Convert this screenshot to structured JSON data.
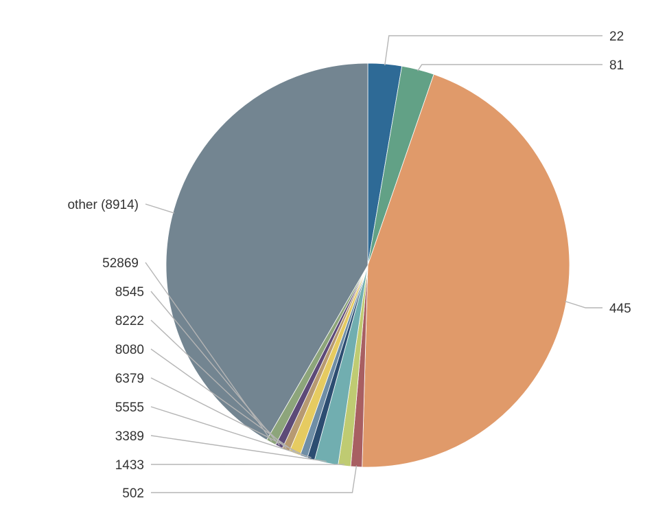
{
  "chart_data": {
    "type": "pie",
    "title": "",
    "start_angle_deg": 0,
    "direction": "clockwise",
    "slices": [
      {
        "label": "22",
        "value": 2.7,
        "color": "#2e6a96"
      },
      {
        "label": "81",
        "value": 2.6,
        "color": "#62a186"
      },
      {
        "label": "445",
        "value": 45.1,
        "color": "#e09a6a"
      },
      {
        "label": "502",
        "value": 0.9,
        "color": "#a85f62"
      },
      {
        "label": "1433",
        "value": 1.0,
        "color": "#bfcb72"
      },
      {
        "label": "3389",
        "value": 1.9,
        "color": "#71aeb0"
      },
      {
        "label": "5555",
        "value": 0.6,
        "color": "#2c4d71"
      },
      {
        "label": "6379",
        "value": 0.6,
        "color": "#6f8ea6"
      },
      {
        "label": "8080",
        "value": 0.9,
        "color": "#e6cb61"
      },
      {
        "label": "8222",
        "value": 0.6,
        "color": "#b79a72"
      },
      {
        "label": "8545",
        "value": 0.6,
        "color": "#5d4a78"
      },
      {
        "label": "52869",
        "value": 0.8,
        "color": "#8da57b"
      },
      {
        "label": "other (8914)",
        "value": 41.6,
        "color": "#738591"
      }
    ]
  }
}
